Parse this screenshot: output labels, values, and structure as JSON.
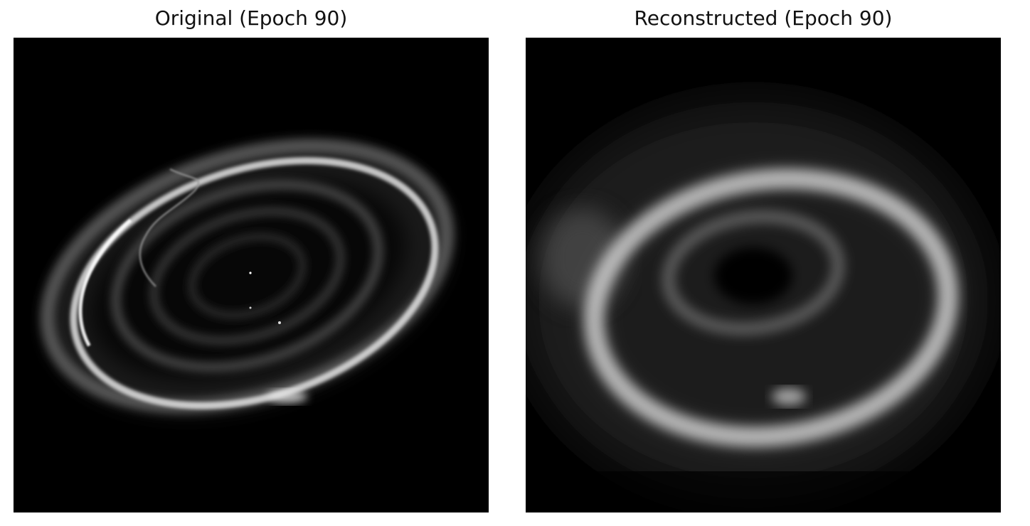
{
  "panels": {
    "original": {
      "title": "Original (Epoch 90)"
    },
    "reconstructed": {
      "title": "Reconstructed (Epoch 90)"
    }
  }
}
